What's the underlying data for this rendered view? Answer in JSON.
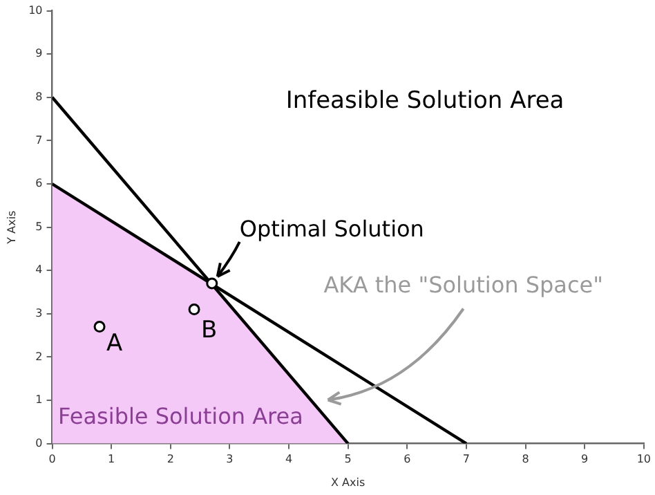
{
  "chart_data": {
    "type": "line",
    "xlabel": "X Axis",
    "ylabel": "Y Axis",
    "xlim": [
      0,
      10
    ],
    "ylim": [
      0,
      10
    ],
    "xticks": [
      0,
      1,
      2,
      3,
      4,
      5,
      6,
      7,
      8,
      9,
      10
    ],
    "yticks": [
      0,
      1,
      2,
      3,
      4,
      5,
      6,
      7,
      8,
      9,
      10
    ],
    "grid": false,
    "legend": false,
    "marker": "none",
    "line_style": "solid",
    "series": [
      {
        "type": "area",
        "color": "#f4c8f7",
        "x": [
          0,
          2.7,
          5
        ],
        "values": [
          6,
          3.7,
          0
        ]
      },
      {
        "type": "line",
        "color": "#000000",
        "x": [
          0,
          5
        ],
        "values": [
          8,
          0
        ]
      },
      {
        "type": "line",
        "color": "#000000",
        "x": [
          0,
          7
        ],
        "values": [
          6,
          0
        ]
      },
      {
        "type": "scatter",
        "color": "#000000",
        "marker": "circle",
        "x": [
          0.8,
          2.4,
          2.7
        ],
        "values": [
          2.7,
          3.1,
          3.7
        ]
      }
    ],
    "annotations": [
      "Infeasible Solution Area",
      {
        "text": "Optimal Solution",
        "x": 2.7,
        "y": 3.7
      },
      "AKA the \"Solution Space\"",
      "Feasible Solution Area",
      {
        "text": "A",
        "x": 0.8,
        "y": 2.7
      },
      {
        "text": "B",
        "x": 2.4,
        "y": 3.1
      }
    ]
  }
}
